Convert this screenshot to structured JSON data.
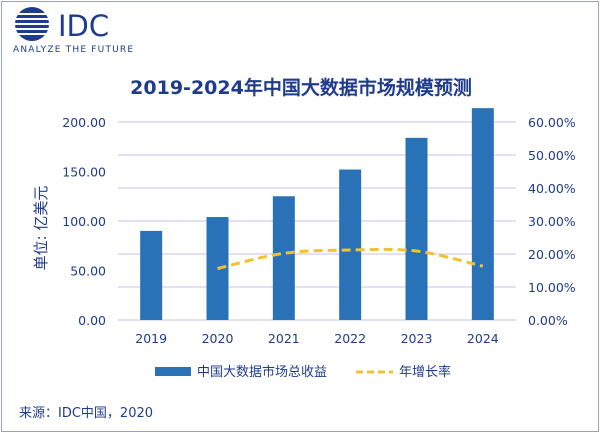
{
  "logo": {
    "brand": "IDC",
    "tagline": "ANALYZE THE FUTURE"
  },
  "source": "来源：IDC中国，2020",
  "colors": {
    "brand": "#1f3b8c",
    "bar": "#2a72b8",
    "line": "#f0c232",
    "grid": "#c8c2e6"
  },
  "chart_data": {
    "type": "bar",
    "title": "2019-2024年中国大数据市场规模预测",
    "xlabel": "",
    "ylabel": "单位: 亿美元",
    "categories": [
      "2019",
      "2020",
      "2021",
      "2022",
      "2023",
      "2024"
    ],
    "ylim": [
      0,
      200
    ],
    "y2lim": [
      0,
      60
    ],
    "y_ticks": [
      "0.00",
      "50.00",
      "100.00",
      "150.00",
      "200.00"
    ],
    "y2_ticks": [
      "0.00%",
      "10.00%",
      "20.00%",
      "30.00%",
      "40.00%",
      "50.00%",
      "60.00%"
    ],
    "grid": true,
    "legend_position": "bottom",
    "series": [
      {
        "name": "中国大数据市场总收益",
        "type": "bar",
        "axis": "left",
        "values": [
          90,
          104,
          125,
          152,
          184,
          214
        ]
      },
      {
        "name": "年增长率",
        "type": "line",
        "style": "dashed",
        "axis": "right",
        "values": [
          null,
          15.6,
          20.2,
          21.2,
          20.9,
          16.3
        ]
      }
    ]
  }
}
